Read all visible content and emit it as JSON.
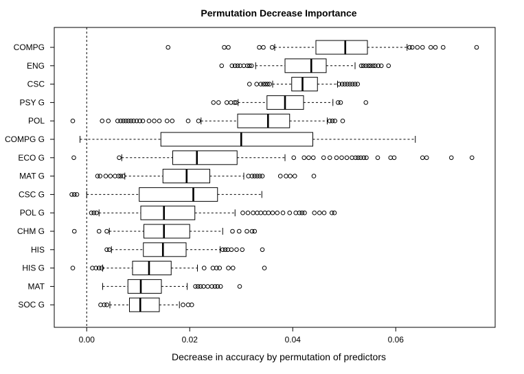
{
  "chart_data": {
    "type": "boxplot",
    "orientation": "horizontal",
    "title": "Permutation Decrease Importance",
    "xlabel": "Decrease in accuracy by permutation of predictors",
    "ylabel": "",
    "xlim": [
      -0.0063,
      0.0793
    ],
    "x_ticks": [
      0.0,
      0.02,
      0.04,
      0.06
    ],
    "x_tick_labels": [
      "0.00",
      "0.02",
      "0.04",
      "0.06"
    ],
    "reference_line": {
      "x": 0.0,
      "style": "dashed"
    },
    "grid": false,
    "categories": [
      "COMPG",
      "ENG",
      "CSC",
      "PSY G",
      "POL",
      "COMPG G",
      "ECO G",
      "MAT G",
      "CSC G",
      "POL G",
      "CHM G",
      "HIS",
      "HIS G",
      "MAT",
      "SOC G"
    ],
    "boxes": [
      {
        "label": "COMPG",
        "whisker_low": 0.0365,
        "q1": 0.0445,
        "median": 0.0502,
        "q3": 0.0545,
        "whisker_high": 0.0622,
        "outliers": [
          0.0158,
          0.0267,
          0.0275,
          0.0335,
          0.0343,
          0.036,
          0.0627,
          0.0632,
          0.0642,
          0.0652,
          0.0668,
          0.0677,
          0.0692,
          0.0757
        ]
      },
      {
        "label": "ENG",
        "whisker_low": 0.0328,
        "q1": 0.0385,
        "median": 0.0436,
        "q3": 0.0465,
        "whisker_high": 0.0521,
        "outliers": [
          0.0262,
          0.0282,
          0.0288,
          0.0293,
          0.0298,
          0.0305,
          0.0312,
          0.0316,
          0.032,
          0.0533,
          0.0537,
          0.0542,
          0.0547,
          0.0551,
          0.0556,
          0.056,
          0.0566,
          0.0572,
          0.0586
        ]
      },
      {
        "label": "CSC",
        "whisker_low": 0.0361,
        "q1": 0.0398,
        "median": 0.0419,
        "q3": 0.0448,
        "whisker_high": 0.0487,
        "outliers": [
          0.0316,
          0.033,
          0.0338,
          0.0343,
          0.0347,
          0.0351,
          0.0355,
          0.049,
          0.0496,
          0.0501,
          0.0506,
          0.0511,
          0.0516,
          0.0521,
          0.0526
        ]
      },
      {
        "label": "PSY G",
        "whisker_low": 0.0294,
        "q1": 0.035,
        "median": 0.0385,
        "q3": 0.0421,
        "whisker_high": 0.0478,
        "outliers": [
          0.0246,
          0.0256,
          0.0272,
          0.028,
          0.0287,
          0.029,
          0.0488,
          0.0493,
          0.0542
        ]
      },
      {
        "label": "POL",
        "whisker_low": 0.0222,
        "q1": 0.0293,
        "median": 0.0352,
        "q3": 0.0394,
        "whisker_high": 0.0467,
        "outliers": [
          -0.0027,
          0.003,
          0.0042,
          0.006,
          0.0066,
          0.0071,
          0.0076,
          0.0081,
          0.0086,
          0.0091,
          0.0097,
          0.0103,
          0.0109,
          0.0121,
          0.0131,
          0.0141,
          0.0156,
          0.0166,
          0.0197,
          0.0217,
          0.0472,
          0.0477,
          0.0482,
          0.0497
        ]
      },
      {
        "label": "COMPG G",
        "whisker_low": -0.0013,
        "q1": 0.0144,
        "median": 0.03,
        "q3": 0.0439,
        "whisker_high": 0.0638,
        "outliers": []
      },
      {
        "label": "ECO G",
        "whisker_low": 0.0068,
        "q1": 0.0167,
        "median": 0.0214,
        "q3": 0.0292,
        "whisker_high": 0.0385,
        "outliers": [
          -0.0025,
          0.0063,
          0.0402,
          0.0422,
          0.0431,
          0.044,
          0.046,
          0.0472,
          0.0485,
          0.0495,
          0.0505,
          0.0515,
          0.0522,
          0.0527,
          0.0532,
          0.0538,
          0.0543,
          0.0565,
          0.059,
          0.0597,
          0.0652,
          0.066,
          0.0708,
          0.0748
        ]
      },
      {
        "label": "MAT G",
        "whisker_low": 0.0074,
        "q1": 0.0148,
        "median": 0.0194,
        "q3": 0.0239,
        "whisker_high": 0.0305,
        "outliers": [
          0.0021,
          0.0026,
          0.0037,
          0.0046,
          0.0055,
          0.0062,
          0.0066,
          0.0071,
          0.0314,
          0.0321,
          0.0326,
          0.0331,
          0.0336,
          0.0341,
          0.0376,
          0.0387,
          0.0395,
          0.0404,
          0.0441
        ]
      },
      {
        "label": "CSC G",
        "whisker_low": 0.0,
        "q1": 0.0102,
        "median": 0.0207,
        "q3": 0.0254,
        "whisker_high": 0.034,
        "outliers": [
          -0.0029,
          -0.0024,
          -0.0019
        ]
      },
      {
        "label": "POL G",
        "whisker_low": 0.0024,
        "q1": 0.0105,
        "median": 0.015,
        "q3": 0.021,
        "whisker_high": 0.0288,
        "outliers": [
          0.0009,
          0.0014,
          0.0019,
          0.0303,
          0.0313,
          0.0323,
          0.0331,
          0.0338,
          0.0346,
          0.0353,
          0.0361,
          0.037,
          0.0381,
          0.0394,
          0.0406,
          0.0413,
          0.0418,
          0.0423,
          0.0442,
          0.0452,
          0.0461,
          0.0476,
          0.0481
        ]
      },
      {
        "label": "CHM G",
        "whisker_low": 0.0044,
        "q1": 0.0111,
        "median": 0.015,
        "q3": 0.02,
        "whisker_high": 0.0264,
        "outliers": [
          -0.0024,
          0.0024,
          0.0039,
          0.0283,
          0.0296,
          0.0311,
          0.0321,
          0.0326
        ]
      },
      {
        "label": "HIS",
        "whisker_low": 0.0048,
        "q1": 0.011,
        "median": 0.0148,
        "q3": 0.0193,
        "whisker_high": 0.0259,
        "outliers": [
          0.0039,
          0.0044,
          0.0264,
          0.0269,
          0.0274,
          0.0281,
          0.0291,
          0.0302,
          0.0341
        ]
      },
      {
        "label": "HIS G",
        "whisker_low": 0.0031,
        "q1": 0.0089,
        "median": 0.0121,
        "q3": 0.0164,
        "whisker_high": 0.0215,
        "outliers": [
          -0.0027,
          0.0011,
          0.0018,
          0.0024,
          0.0029,
          0.0228,
          0.0245,
          0.0252,
          0.0258,
          0.0275,
          0.0284,
          0.0345
        ]
      },
      {
        "label": "MAT",
        "whisker_low": 0.0031,
        "q1": 0.008,
        "median": 0.0105,
        "q3": 0.0145,
        "whisker_high": 0.0195,
        "outliers": [
          0.0211,
          0.0216,
          0.0221,
          0.0227,
          0.0235,
          0.0243,
          0.0249,
          0.0254,
          0.026,
          0.0297
        ]
      },
      {
        "label": "SOC G",
        "whisker_low": 0.0045,
        "q1": 0.0083,
        "median": 0.0104,
        "q3": 0.0141,
        "whisker_high": 0.018,
        "outliers": [
          0.0027,
          0.0034,
          0.0039,
          0.0187,
          0.0197,
          0.0204
        ]
      }
    ]
  }
}
